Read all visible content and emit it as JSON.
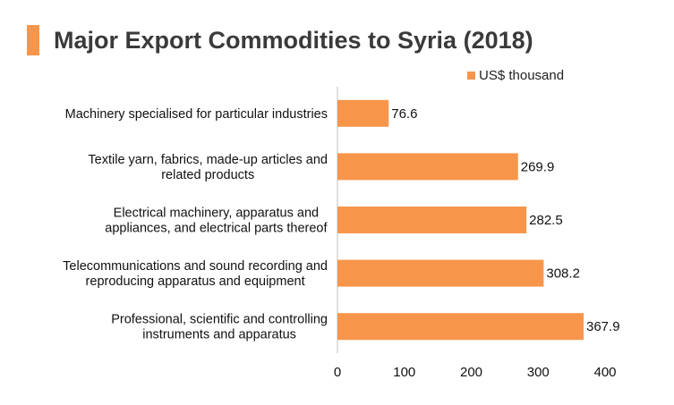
{
  "header": {
    "title": "Major Export Commodities to Syria (2018)"
  },
  "colors": {
    "accent": "#F7964B",
    "bar": "#F7964B",
    "axis": "#bfbfbf",
    "title_text": "#3a3a3a"
  },
  "chart_data": {
    "type": "bar",
    "orientation": "horizontal",
    "title": "Major Export Commodities to Syria (2018)",
    "categories": [
      [
        "Machinery specialised for particular industries"
      ],
      [
        "Textile yarn, fabrics, made-up articles and",
        "related products"
      ],
      [
        "Electrical machinery, apparatus and",
        "appliances, and electrical parts thereof"
      ],
      [
        "Telecommunications and sound recording and",
        "reproducing apparatus and equipment"
      ],
      [
        "Professional, scientific and controlling",
        "instruments and apparatus"
      ]
    ],
    "series": [
      {
        "name": "US$ thousand",
        "values": [
          76.6,
          269.9,
          282.5,
          308.2,
          367.9
        ],
        "labels": [
          "76.6",
          "269.9",
          "282.5",
          "308.2",
          "367.9"
        ]
      }
    ],
    "xlim": [
      0,
      400
    ],
    "xticks": [
      "0",
      "100",
      "200",
      "300",
      "400"
    ],
    "grid": false,
    "legend": "top-right"
  }
}
